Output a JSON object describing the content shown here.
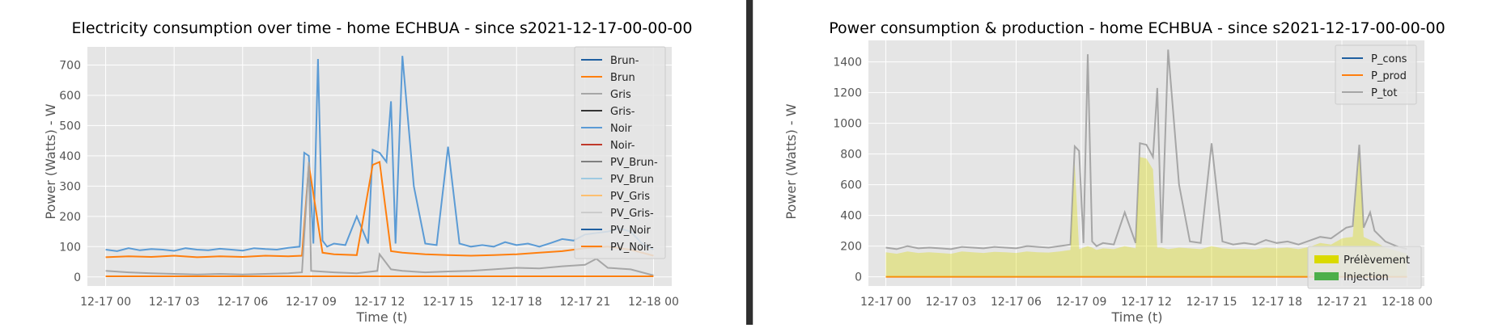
{
  "colors": {
    "axes_bg": "#e5e5e5",
    "grid": "#ffffff",
    "text": "#555555",
    "title": "#000000",
    "fill_prelevement": "#dada00",
    "fill_injection": "#4daf4a"
  },
  "chart_data": [
    {
      "type": "line",
      "title": "Electricity consumption over time - home ECHBUA - since s2021-12-17-00-00-00",
      "xlabel": "Time (t)",
      "ylabel": "Power (Watts) - W",
      "x_ticks": [
        "12-17 00",
        "12-17 03",
        "12-17 06",
        "12-17 09",
        "12-17 12",
        "12-17 15",
        "12-17 18",
        "12-17 21",
        "12-18 00"
      ],
      "x_range_hours": [
        -0.8,
        24.8
      ],
      "ylim": [
        -30,
        760
      ],
      "y_ticks": [
        0,
        100,
        200,
        300,
        400,
        500,
        600,
        700
      ],
      "grid": true,
      "legend_position": "top-right",
      "legend": [
        {
          "name": "Brun-",
          "color": "#1f5fa0"
        },
        {
          "name": "Brun",
          "color": "#ff7f0e"
        },
        {
          "name": "Gris",
          "color": "#a6a6a6"
        },
        {
          "name": "Gris-",
          "color": "#333333"
        },
        {
          "name": "Noir",
          "color": "#5b9bd5"
        },
        {
          "name": "Noir-",
          "color": "#c0392b"
        },
        {
          "name": "PV_Brun-",
          "color": "#7f7f7f"
        },
        {
          "name": "PV_Brun",
          "color": "#9ecae1"
        },
        {
          "name": "PV_Gris",
          "color": "#fdbf6f"
        },
        {
          "name": "PV_Gris-",
          "color": "#cccccc"
        },
        {
          "name": "PV_Noir",
          "color": "#1f5fa0"
        },
        {
          "name": "PV_Noir-",
          "color": "#ff7f0e"
        }
      ],
      "series": [
        {
          "name": "Noir",
          "color": "#5b9bd5",
          "x_hours": [
            0,
            0.5,
            1,
            1.5,
            2,
            2.5,
            3,
            3.5,
            4,
            4.5,
            5,
            5.5,
            6,
            6.5,
            7,
            7.5,
            8,
            8.5,
            8.7,
            8.9,
            9.1,
            9.3,
            9.5,
            9.7,
            10,
            10.5,
            11,
            11.5,
            11.7,
            12,
            12.3,
            12.5,
            12.7,
            13,
            13.5,
            14,
            14.5,
            15,
            15.5,
            16,
            16.5,
            17,
            17.5,
            18,
            18.5,
            19,
            19.5,
            20,
            20.5,
            21,
            21.5,
            22,
            22.5,
            23,
            23.5,
            24
          ],
          "values": [
            90,
            85,
            95,
            88,
            92,
            90,
            86,
            95,
            90,
            88,
            93,
            90,
            87,
            95,
            92,
            90,
            96,
            100,
            410,
            400,
            110,
            720,
            120,
            100,
            110,
            105,
            200,
            110,
            420,
            410,
            380,
            580,
            110,
            730,
            300,
            110,
            105,
            430,
            110,
            100,
            105,
            100,
            115,
            105,
            110,
            100,
            112,
            125,
            120,
            140,
            145,
            150,
            160,
            150,
            110,
            90
          ]
        },
        {
          "name": "Brun",
          "color": "#ff7f0e",
          "x_hours": [
            0,
            1,
            2,
            3,
            4,
            5,
            6,
            7,
            8,
            8.6,
            8.9,
            9.5,
            10,
            11,
            11.7,
            12,
            12.5,
            13,
            14,
            15,
            16,
            17,
            18,
            19,
            20,
            21,
            22,
            23,
            24
          ],
          "values": [
            65,
            68,
            66,
            70,
            65,
            68,
            66,
            70,
            68,
            70,
            370,
            80,
            75,
            72,
            370,
            380,
            85,
            80,
            75,
            72,
            70,
            72,
            75,
            80,
            85,
            95,
            100,
            90,
            70
          ]
        },
        {
          "name": "Gris",
          "color": "#a6a6a6",
          "x_hours": [
            0,
            1,
            2,
            3,
            4,
            5,
            6,
            7,
            8,
            8.6,
            8.9,
            9,
            10,
            11,
            11.9,
            12,
            12.5,
            13,
            14,
            15,
            16,
            17,
            18,
            19,
            20,
            21,
            21.5,
            22,
            23,
            24
          ],
          "values": [
            20,
            15,
            12,
            10,
            8,
            10,
            8,
            10,
            12,
            15,
            380,
            20,
            15,
            12,
            20,
            75,
            25,
            20,
            15,
            18,
            20,
            25,
            30,
            28,
            35,
            40,
            60,
            30,
            25,
            5
          ]
        },
        {
          "name": "PV_Noir-",
          "color": "#ff7f0e",
          "x_hours": [
            0,
            24
          ],
          "values": [
            2,
            2
          ]
        }
      ]
    },
    {
      "type": "line",
      "title": "Power consumption & production - home ECHBUA - since s2021-12-17-00-00-00",
      "xlabel": "Time (t)",
      "ylabel": "Power (Watts) - W",
      "x_ticks": [
        "12-17 00",
        "12-17 03",
        "12-17 06",
        "12-17 09",
        "12-17 12",
        "12-17 15",
        "12-17 18",
        "12-17 21",
        "12-18 00"
      ],
      "x_range_hours": [
        -0.8,
        24.8
      ],
      "ylim": [
        -60,
        1540
      ],
      "y_ticks": [
        0,
        200,
        400,
        600,
        800,
        1000,
        1200,
        1400
      ],
      "grid": true,
      "legend_position": "top-right",
      "legend": [
        {
          "name": "P_cons",
          "color": "#1f5fa0"
        },
        {
          "name": "P_prod",
          "color": "#ff7f0e"
        },
        {
          "name": "P_tot",
          "color": "#a6a6a6"
        }
      ],
      "fill_legend_position": "lower-right",
      "fill_legend": [
        {
          "name": "Prélèvement",
          "color": "#dada00"
        },
        {
          "name": "Injection",
          "color": "#4daf4a"
        }
      ],
      "series": [
        {
          "name": "P_tot",
          "color": "#a6a6a6",
          "x_hours": [
            0,
            0.5,
            1,
            1.5,
            2,
            2.5,
            3,
            3.5,
            4,
            4.5,
            5,
            5.5,
            6,
            6.5,
            7,
            7.5,
            8,
            8.5,
            8.7,
            8.9,
            9.1,
            9.3,
            9.5,
            9.7,
            10,
            10.5,
            11,
            11.5,
            11.7,
            12,
            12.3,
            12.5,
            12.7,
            13,
            13.5,
            14,
            14.5,
            15,
            15.5,
            16,
            16.5,
            17,
            17.5,
            18,
            18.5,
            19,
            19.5,
            20,
            20.5,
            21,
            21.2,
            21.5,
            21.8,
            22,
            22.3,
            22.5,
            23,
            23.5,
            24
          ],
          "values": [
            190,
            180,
            200,
            185,
            190,
            185,
            180,
            195,
            190,
            185,
            195,
            190,
            185,
            200,
            195,
            190,
            200,
            210,
            850,
            820,
            220,
            1450,
            230,
            200,
            220,
            210,
            420,
            220,
            870,
            860,
            780,
            1230,
            220,
            1480,
            600,
            230,
            220,
            870,
            230,
            210,
            220,
            210,
            240,
            220,
            230,
            210,
            235,
            260,
            250,
            300,
            320,
            330,
            860,
            320,
            420,
            300,
            230,
            200,
            180
          ]
        },
        {
          "name": "P_prod",
          "color": "#ff7f0e",
          "x_hours": [
            0,
            24
          ],
          "values": [
            0,
            0
          ]
        },
        {
          "name": "Prélèvement",
          "color": "#dada00",
          "x_hours": [
            0,
            0.5,
            1,
            1.5,
            2,
            2.5,
            3,
            3.5,
            4,
            4.5,
            5,
            5.5,
            6,
            6.5,
            7,
            7.5,
            8,
            8.5,
            8.7,
            8.9,
            9.1,
            9.3,
            9.5,
            9.7,
            10,
            10.5,
            11,
            11.5,
            11.7,
            12,
            12.3,
            12.5,
            12.7,
            13,
            13.5,
            14,
            14.5,
            15,
            15.5,
            16,
            16.5,
            17,
            17.5,
            18,
            18.5,
            19,
            19.5,
            20,
            20.5,
            21,
            21.2,
            21.5,
            21.8,
            22,
            22.3,
            22.5,
            23,
            23.5,
            24
          ],
          "values": [
            160,
            150,
            165,
            155,
            160,
            155,
            150,
            165,
            160,
            155,
            162,
            160,
            155,
            165,
            160,
            158,
            165,
            175,
            740,
            180,
            190,
            200,
            190,
            175,
            185,
            180,
            200,
            185,
            780,
            770,
            700,
            190,
            190,
            180,
            190,
            185,
            180,
            200,
            185,
            180,
            182,
            178,
            190,
            185,
            190,
            180,
            195,
            220,
            210,
            250,
            255,
            260,
            800,
            260,
            240,
            230,
            190,
            170,
            150
          ]
        }
      ]
    }
  ]
}
